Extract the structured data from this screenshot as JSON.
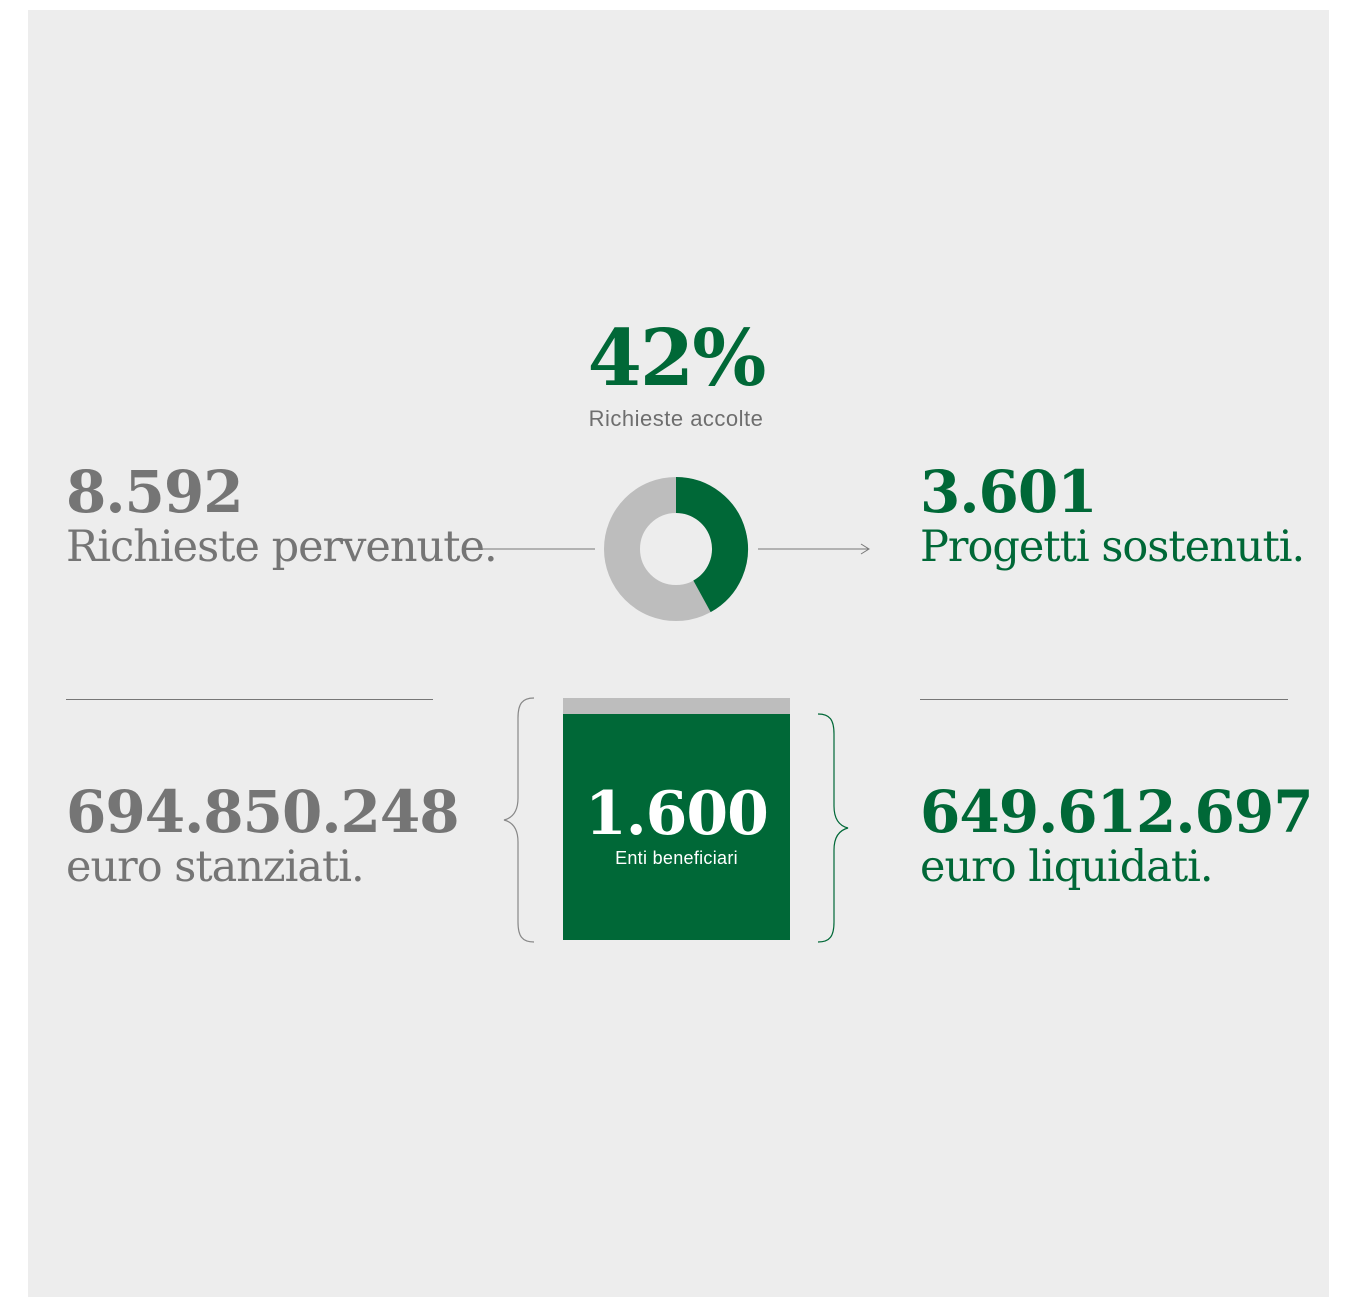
{
  "accepted": {
    "percent_text": "42%",
    "label": "Richieste accolte",
    "fraction": 0.42
  },
  "requests": {
    "number": "8.592",
    "label": "Richieste pervenute."
  },
  "projects": {
    "number": "3.601",
    "label": "Progetti sostenuti."
  },
  "allocated": {
    "number": "694.850.248",
    "label": "euro stanziati."
  },
  "disbursed": {
    "number": "649.612.697",
    "label": "euro liquidati."
  },
  "beneficiaries": {
    "number": "1.600",
    "label": "Enti beneficiari"
  },
  "colors": {
    "green": "#006837",
    "grey_text": "#757575",
    "light_grey": "#bdbdbd",
    "background": "#ededed"
  }
}
